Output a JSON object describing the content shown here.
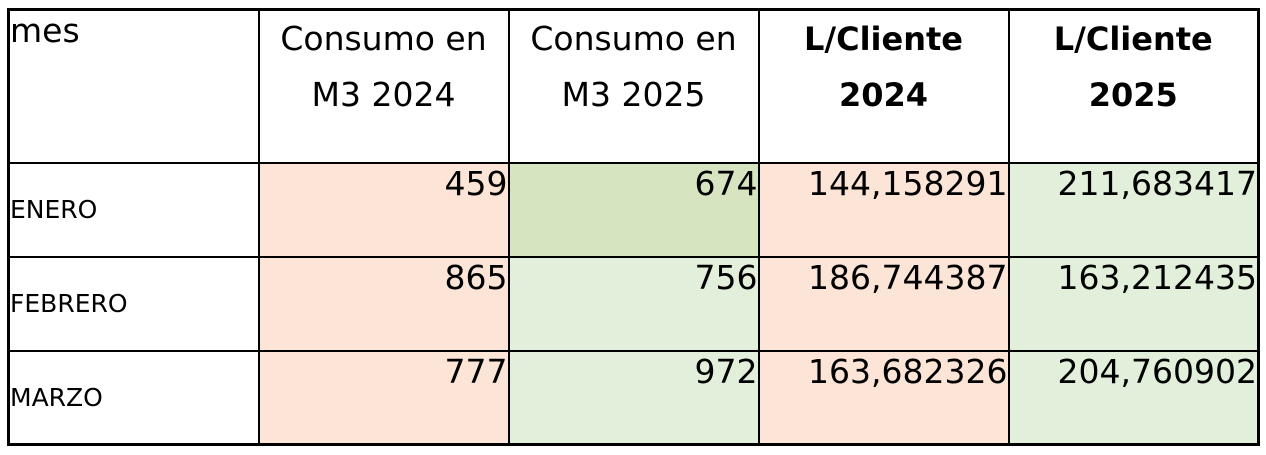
{
  "colors": {
    "fill_2024": "#fce4d6",
    "fill_2025": "#e2efda",
    "fill_2025_highlight": "#d6e5bf",
    "border": "#000000",
    "background": "#ffffff"
  },
  "table": {
    "headers": {
      "mes": "mes",
      "consumo_2024": [
        "Consumo en",
        "M3 2024"
      ],
      "consumo_2025": [
        "Consumo en",
        "M3 2025"
      ],
      "l_cliente_2024": [
        "L/Cliente",
        "2024"
      ],
      "l_cliente_2025": [
        "L/Cliente",
        "2025"
      ]
    }
  },
  "chart_data": {
    "type": "table",
    "columns": [
      "mes",
      "Consumo en M3 2024",
      "Consumo en M3 2025",
      "L/Cliente 2024",
      "L/Cliente 2025"
    ],
    "rows": [
      {
        "mes": "ENERO",
        "consumo_2024": "459",
        "consumo_2025": "674",
        "l_cliente_2024": "144,158291",
        "l_cliente_2025": "211,683417"
      },
      {
        "mes": "FEBRERO",
        "consumo_2024": "865",
        "consumo_2025": "756",
        "l_cliente_2024": "186,744387",
        "l_cliente_2025": "163,212435"
      },
      {
        "mes": "MARZO",
        "consumo_2024": "777",
        "consumo_2025": "972",
        "l_cliente_2024": "163,682326",
        "l_cliente_2025": "204,760902"
      }
    ]
  }
}
